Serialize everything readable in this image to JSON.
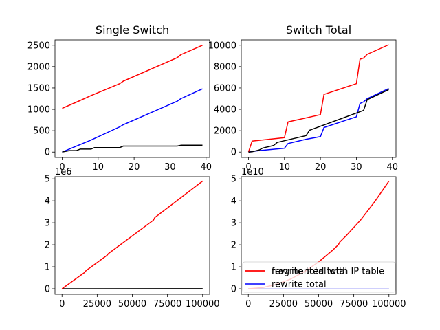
{
  "chart_data": [
    {
      "type": "line",
      "title": "Single Switch",
      "xlim": [
        -2,
        41
      ],
      "ylim": [
        -125,
        2625
      ],
      "xticks": [
        0,
        10,
        20,
        30,
        40
      ],
      "yticks": [
        0,
        500,
        1000,
        1500,
        2000,
        2500
      ],
      "xtick_labels": [
        "0",
        "10",
        "20",
        "30",
        "40"
      ],
      "ytick_labels": [
        "0",
        "500",
        "1000",
        "1500",
        "2000",
        "2500"
      ],
      "offset_label": "",
      "series": [
        {
          "color": "#ff0000",
          "x": [
            0,
            4,
            8,
            16,
            17,
            32,
            33,
            39
          ],
          "y": [
            1024,
            1170,
            1320,
            1600,
            1660,
            2210,
            2280,
            2500
          ]
        },
        {
          "color": "#0000ff",
          "x": [
            0,
            8,
            16,
            17,
            32,
            33,
            39
          ],
          "y": [
            0,
            280,
            590,
            640,
            1190,
            1250,
            1480
          ]
        },
        {
          "color": "#000000",
          "x": [
            0,
            2,
            4,
            5,
            8,
            9,
            16,
            17,
            32,
            33,
            39
          ],
          "y": [
            0,
            35,
            35,
            70,
            70,
            105,
            105,
            140,
            140,
            160,
            160
          ]
        }
      ]
    },
    {
      "type": "line",
      "title": "Switch Total",
      "xlim": [
        -2,
        41
      ],
      "ylim": [
        -500,
        10500
      ],
      "xticks": [
        0,
        10,
        20,
        30,
        40
      ],
      "yticks": [
        0,
        2000,
        4000,
        6000,
        8000,
        10000
      ],
      "xtick_labels": [
        "0",
        "10",
        "20",
        "30",
        "40"
      ],
      "ytick_labels": [
        "0",
        "2000",
        "4000",
        "6000",
        "8000",
        "10000"
      ],
      "offset_label": "",
      "series": [
        {
          "color": "#ff0000",
          "x": [
            0,
            1,
            10,
            11,
            20,
            21,
            30,
            31,
            32,
            33,
            39
          ],
          "y": [
            0,
            1024,
            1350,
            2820,
            3500,
            5400,
            6400,
            8700,
            8800,
            9150,
            10050
          ]
        },
        {
          "color": "#0000ff",
          "x": [
            0,
            2,
            5,
            8,
            10,
            11,
            16,
            20,
            21,
            30,
            31,
            32,
            33,
            39
          ],
          "y": [
            0,
            100,
            200,
            300,
            360,
            800,
            1200,
            1440,
            2300,
            3300,
            4550,
            4700,
            5000,
            5950
          ]
        },
        {
          "color": "#000000",
          "x": [
            0,
            1,
            3,
            4,
            7,
            8,
            16,
            17,
            32,
            33,
            39
          ],
          "y": [
            0,
            30,
            200,
            380,
            620,
            900,
            1540,
            2050,
            3900,
            4900,
            5850
          ]
        }
      ]
    },
    {
      "type": "line",
      "title": "",
      "xlim": [
        -5000,
        105000
      ],
      "ylim": [
        -0.25,
        5.1
      ],
      "xticks": [
        0,
        25000,
        50000,
        75000,
        100000
      ],
      "yticks": [
        0,
        1,
        2,
        3,
        4,
        5
      ],
      "xtick_labels": [
        "0",
        "25000",
        "50000",
        "75000",
        "100000"
      ],
      "ytick_labels": [
        "0",
        "1",
        "2",
        "3",
        "4",
        "5"
      ],
      "offset_label": "1e6",
      "series": [
        {
          "color": "#000000",
          "x": [
            0,
            100000
          ],
          "y": [
            0,
            0.003
          ]
        },
        {
          "color": "#ff0000",
          "x": [
            0,
            16000,
            17000,
            32000,
            33000,
            65000,
            66000,
            100000
          ],
          "y": [
            0,
            0.74,
            0.82,
            1.52,
            1.6,
            3.12,
            3.24,
            4.9
          ]
        }
      ]
    },
    {
      "type": "line",
      "title": "",
      "xlim": [
        -5000,
        105000
      ],
      "ylim": [
        -0.25,
        5.1
      ],
      "xticks": [
        0,
        25000,
        50000,
        75000,
        100000
      ],
      "yticks": [
        0,
        1,
        2,
        3,
        4,
        5
      ],
      "xtick_labels": [
        "0",
        "25000",
        "50000",
        "75000",
        "100000"
      ],
      "ytick_labels": [
        "0",
        "1",
        "2",
        "3",
        "4",
        "5"
      ],
      "offset_label": "1e10",
      "series": [
        {
          "color": "#000000",
          "x": [
            0,
            100000
          ],
          "y": [
            0,
            0.001
          ]
        },
        {
          "color": "#0000ff",
          "x": [
            0,
            100000
          ],
          "y": [
            0,
            0.002
          ]
        },
        {
          "color": "#ff0000",
          "x": [
            0,
            10000,
            20000,
            30000,
            40000,
            50000,
            60000,
            64000,
            65000,
            70000,
            80000,
            90000,
            100000
          ],
          "y": [
            0,
            0.05,
            0.2,
            0.44,
            0.78,
            1.22,
            1.76,
            2.0,
            2.12,
            2.44,
            3.14,
            3.97,
            4.9
          ]
        }
      ],
      "legend": {
        "placement": "lower-center",
        "entries": [
          {
            "label": "rewrite total with IP table",
            "color": "#ff0000"
          },
          {
            "label": "rewrite total",
            "color": "#0000ff"
          },
          {
            "label": "fragmented total",
            "color": "#ff0000"
          }
        ]
      }
    }
  ]
}
